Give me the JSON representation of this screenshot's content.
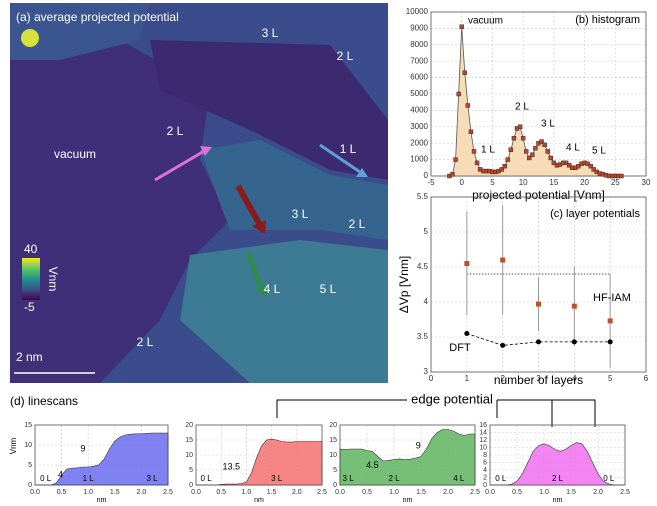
{
  "map_panel": {
    "title": "(a) average projected potential",
    "region_labels": [
      "3 L",
      "2 L",
      "2 L",
      "vacuum",
      "1 L",
      "3 L",
      "2 L",
      "5 L",
      "4 L",
      "2 L"
    ],
    "colorbar": {
      "max": 40,
      "min": -5,
      "unit": "Vnm"
    },
    "scale_bar": "2 nm"
  },
  "annotation": "edge potential",
  "linescans_title": "(d) linescans",
  "chart_data": [
    {
      "type": "line",
      "title": "(b) histogram",
      "xlabel": "projected potential [Vnm]",
      "x": [
        -2,
        -1.5,
        -1,
        -0.5,
        0,
        0.5,
        1,
        1.5,
        2,
        2.5,
        3,
        3.5,
        4,
        4.5,
        5,
        5.5,
        6,
        6.5,
        7,
        7.5,
        8,
        8.5,
        9,
        9.5,
        10,
        10.5,
        11,
        11.5,
        12,
        12.5,
        13,
        13.5,
        14,
        14.5,
        15,
        15.5,
        16,
        16.5,
        17,
        17.5,
        18,
        18.5,
        19,
        19.5,
        20,
        20.5,
        21,
        21.5,
        22,
        22.5,
        23,
        23.5,
        24,
        24.5,
        25,
        25.5,
        26
      ],
      "series": [
        {
          "color": "#b5472b",
          "fill": "#f8dcb8",
          "values": [
            0,
            100,
            1000,
            5000,
            9100,
            6300,
            4300,
            2700,
            1500,
            800,
            400,
            300,
            300,
            300,
            250,
            250,
            300,
            400,
            600,
            1000,
            1600,
            2300,
            2900,
            3000,
            2300,
            1500,
            1100,
            1300,
            1700,
            2000,
            2100,
            1900,
            1500,
            1100,
            800,
            650,
            700,
            800,
            800,
            650,
            500,
            500,
            600,
            750,
            800,
            750,
            600,
            400,
            250,
            150,
            100,
            50,
            0,
            0,
            0,
            0,
            0
          ]
        }
      ],
      "labels": [
        "vacuum",
        "2 L",
        "3 L",
        "1 L",
        "4 L",
        "5 L"
      ],
      "xlim": [
        -5,
        30
      ],
      "xticks": [
        -5,
        0,
        5,
        10,
        15,
        20,
        25,
        30
      ],
      "ylim": [
        0,
        10000
      ],
      "yticks": [
        0,
        1000,
        2000,
        3000,
        4000,
        5000,
        6000,
        7000,
        8000,
        9000,
        10000
      ],
      "grid": true
    },
    {
      "type": "errorbar",
      "title": "(c) layer potentials",
      "xlabel": "number of layers",
      "ylabel": "ΔVp [Vnm]",
      "x": [
        1,
        2,
        3,
        4,
        5
      ],
      "series": [
        {
          "name": "HF-IAM",
          "color": "#c0502a",
          "values": [
            4.55,
            4.6,
            3.97,
            3.94,
            3.73
          ],
          "errors": [
            0.74,
            0.78,
            0.38,
            0.57,
            0.67
          ]
        },
        {
          "name": "DFT",
          "color": "#000000",
          "values": [
            3.55,
            3.38,
            3.43,
            3.43,
            3.43
          ]
        }
      ],
      "reference_value": 4.4,
      "xlim": [
        0,
        6
      ],
      "xticks": [
        0,
        1,
        2,
        3,
        4,
        5,
        6
      ],
      "ylim": [
        3,
        5.5
      ],
      "yticks": [
        3,
        3.5,
        4,
        4.5,
        5,
        5.5
      ],
      "grid": true
    },
    {
      "type": "area",
      "ylabel": "Vnm",
      "xlabel": "nm",
      "color": "#6b6cf0",
      "x": [
        0,
        0.1,
        0.2,
        0.3,
        0.4,
        0.5,
        0.6,
        0.7,
        0.8,
        0.9,
        1,
        1.1,
        1.2,
        1.3,
        1.4,
        1.5,
        1.6,
        1.7,
        1.8,
        1.9,
        2,
        2.1,
        2.2,
        2.3,
        2.4,
        2.5
      ],
      "values": [
        0,
        0,
        0,
        0,
        0.5,
        2.5,
        4,
        4.2,
        4.3,
        4.5,
        4.5,
        4.7,
        5,
        6.5,
        9,
        11,
        12,
        12.5,
        12.7,
        12.8,
        12.8,
        12.9,
        13,
        13,
        13,
        13
      ],
      "labels": [
        "0 L",
        "1 L",
        "3 L"
      ],
      "annotations": [
        "9",
        "4"
      ],
      "xlim": [
        0,
        2.5
      ],
      "xticks": [
        {
          "value": 0,
          "label": "0.0"
        },
        0.5,
        {
          "value": 1,
          "label": "1.0"
        },
        1.5,
        {
          "value": 2,
          "label": "2.0"
        },
        2.5
      ],
      "ylim": [
        0,
        15
      ],
      "yticks": [
        0,
        5,
        10,
        15
      ],
      "grid": true
    },
    {
      "type": "area",
      "xlabel": "nm",
      "color": "#f47070",
      "x": [
        0,
        0.1,
        0.2,
        0.3,
        0.4,
        0.5,
        0.6,
        0.7,
        0.8,
        0.9,
        1,
        1.1,
        1.2,
        1.3,
        1.4,
        1.5,
        1.6,
        1.7,
        1.8,
        1.9,
        2,
        2.1,
        2.2,
        2.3,
        2.4,
        2.5
      ],
      "values": [
        0,
        0,
        0,
        0,
        0,
        0.2,
        0.3,
        0.3,
        0.3,
        0.5,
        1,
        4,
        9,
        13,
        15,
        15.3,
        15,
        14.5,
        14.3,
        14.3,
        14.5,
        14.5,
        14.5,
        14.5,
        14.5,
        14.5
      ],
      "labels": [
        "0 L",
        "3 L"
      ],
      "annotations": [
        "13.5"
      ],
      "xlim": [
        0,
        2.5
      ],
      "xticks": [
        {
          "value": 0,
          "label": "0.0"
        },
        0.5,
        {
          "value": 1,
          "label": "1.0"
        },
        1.5,
        {
          "value": 2,
          "label": "2.0"
        },
        2.5
      ],
      "ylim": [
        0,
        20
      ],
      "yticks": [
        0,
        5,
        10,
        15,
        20
      ],
      "grid": true
    },
    {
      "type": "area",
      "xlabel": "nm",
      "color": "#5fb45f",
      "x": [
        0,
        0.1,
        0.2,
        0.3,
        0.4,
        0.5,
        0.6,
        0.7,
        0.8,
        0.9,
        1,
        1.1,
        1.2,
        1.3,
        1.4,
        1.5,
        1.6,
        1.7,
        1.8,
        1.9,
        2,
        2.1,
        2.2,
        2.3,
        2.4,
        2.5
      ],
      "values": [
        12,
        11.8,
        12,
        12,
        12,
        11.5,
        11.2,
        9.5,
        8,
        8.2,
        8.5,
        8.7,
        8.5,
        8.6,
        9,
        9.5,
        12,
        15.5,
        17.5,
        18.5,
        18.5,
        18,
        17,
        16.5,
        17,
        17
      ],
      "labels": [
        "3 L",
        "2 L",
        "4 L"
      ],
      "annotations": [
        "4.5",
        "9"
      ],
      "xlim": [
        0,
        2.5
      ],
      "xticks": [
        {
          "value": 0,
          "label": "0.0"
        },
        0.5,
        {
          "value": 1,
          "label": "1.0"
        },
        1.5,
        {
          "value": 2,
          "label": "2.0"
        },
        2.5
      ],
      "ylim": [
        0,
        20
      ],
      "yticks": [
        0,
        5,
        10,
        15,
        20
      ],
      "grid": true
    },
    {
      "type": "area",
      "xlabel": "nm",
      "color": "#f070f0",
      "x": [
        0,
        0.1,
        0.2,
        0.3,
        0.4,
        0.5,
        0.6,
        0.7,
        0.8,
        0.9,
        1,
        1.1,
        1.2,
        1.3,
        1.4,
        1.5,
        1.6,
        1.7,
        1.8,
        1.9,
        2,
        2.1,
        2.2,
        2.3,
        2.4,
        2.5
      ],
      "values": [
        0,
        0,
        0,
        0,
        0.2,
        1,
        3,
        6,
        9,
        10.5,
        11,
        10.5,
        9.5,
        9,
        9.5,
        10.5,
        11.3,
        11,
        9,
        6,
        3,
        1,
        0.3,
        0,
        0,
        0
      ],
      "labels": [
        "0 L",
        "2 L",
        "0 L"
      ],
      "annotations": [],
      "xlim": [
        0,
        2.5
      ],
      "xticks": [
        {
          "value": 0,
          "label": "0.0"
        },
        0.5,
        {
          "value": 1,
          "label": "1.0"
        },
        1.5,
        {
          "value": 2,
          "label": "2.0"
        },
        2.5
      ],
      "ylim": [
        0,
        16
      ],
      "yticks": [
        0,
        2,
        4,
        6,
        8,
        10,
        12,
        14,
        16
      ],
      "grid": true
    }
  ]
}
